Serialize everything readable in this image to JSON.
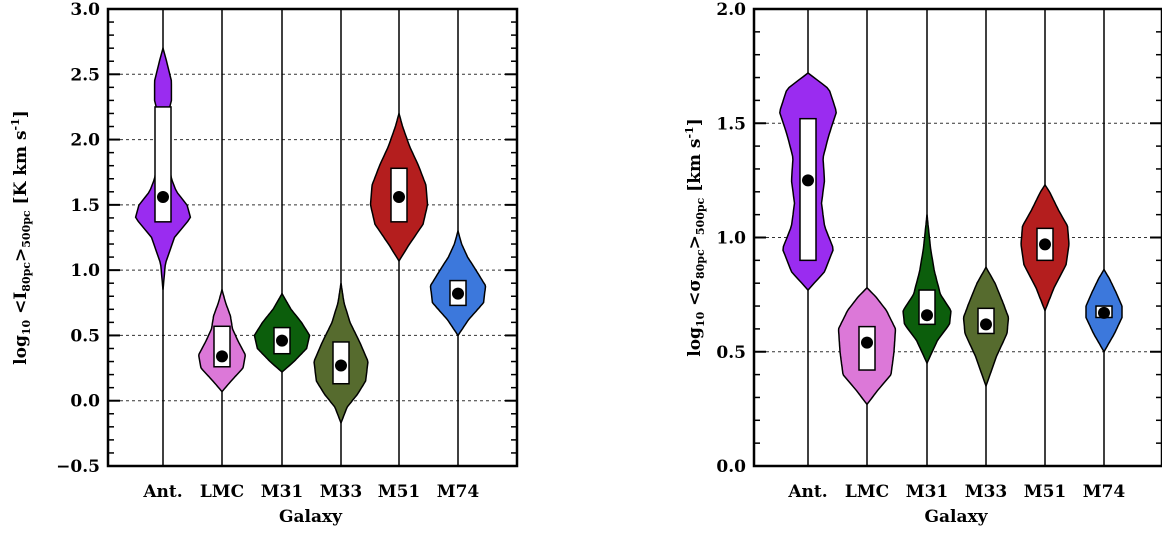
{
  "chart_data": [
    {
      "type": "violin",
      "xlabel": "Galaxy",
      "ylabel": {
        "prefix": "log",
        "prefix_sub": "10",
        "quantity": " <I",
        "quantity_sub": "80pc",
        "mid": ">",
        "mid_sub": "500pc",
        "unit": " [K km s",
        "unit_sup": "-1",
        "unit_end": "]"
      },
      "ylim": [
        -0.5,
        3.0
      ],
      "yticks": [
        -0.5,
        0.0,
        0.5,
        1.0,
        1.5,
        2.0,
        2.5,
        3.0
      ],
      "ytick_labels": [
        "−0.5",
        "0.0",
        "0.5",
        "1.0",
        "1.5",
        "2.0",
        "2.5",
        "3.0"
      ],
      "grid": "horizontal dashed",
      "categories": [
        "Ant.",
        "LMC",
        "M31",
        "M33",
        "M51",
        "M74"
      ],
      "colors": [
        "#9a2cf0",
        "#dc78d8",
        "#0c5e0c",
        "#566b2e",
        "#b41e1e",
        "#3c78dc"
      ],
      "series": [
        {
          "median": 1.56,
          "box": [
            1.37,
            2.25
          ],
          "range": [
            0.85,
            2.7
          ],
          "profile": [
            [
              0.85,
              0
            ],
            [
              1.05,
              0.08
            ],
            [
              1.25,
              0.38
            ],
            [
              1.4,
              0.92
            ],
            [
              1.5,
              0.8
            ],
            [
              1.6,
              0.45
            ],
            [
              1.7,
              0.28
            ],
            [
              1.9,
              0.15
            ],
            [
              2.15,
              0.12
            ],
            [
              2.3,
              0.28
            ],
            [
              2.45,
              0.28
            ],
            [
              2.6,
              0.12
            ],
            [
              2.7,
              0
            ]
          ]
        },
        {
          "median": 0.34,
          "box": [
            0.26,
            0.57
          ],
          "range": [
            0.07,
            0.85
          ],
          "profile": [
            [
              0.07,
              0
            ],
            [
              0.15,
              0.3
            ],
            [
              0.25,
              0.7
            ],
            [
              0.35,
              0.78
            ],
            [
              0.45,
              0.55
            ],
            [
              0.55,
              0.35
            ],
            [
              0.65,
              0.28
            ],
            [
              0.75,
              0.12
            ],
            [
              0.85,
              0
            ]
          ]
        },
        {
          "median": 0.46,
          "box": [
            0.36,
            0.56
          ],
          "range": [
            0.22,
            0.82
          ],
          "profile": [
            [
              0.22,
              0
            ],
            [
              0.3,
              0.4
            ],
            [
              0.4,
              0.82
            ],
            [
              0.5,
              0.92
            ],
            [
              0.6,
              0.65
            ],
            [
              0.7,
              0.3
            ],
            [
              0.82,
              0
            ]
          ]
        },
        {
          "median": 0.27,
          "box": [
            0.13,
            0.45
          ],
          "range": [
            -0.17,
            0.9
          ],
          "profile": [
            [
              -0.17,
              0
            ],
            [
              -0.05,
              0.2
            ],
            [
              0.05,
              0.55
            ],
            [
              0.15,
              0.82
            ],
            [
              0.3,
              0.9
            ],
            [
              0.45,
              0.62
            ],
            [
              0.6,
              0.3
            ],
            [
              0.75,
              0.1
            ],
            [
              0.9,
              0
            ]
          ]
        },
        {
          "median": 1.56,
          "box": [
            1.37,
            1.78
          ],
          "range": [
            1.07,
            2.2
          ],
          "profile": [
            [
              1.07,
              0
            ],
            [
              1.2,
              0.35
            ],
            [
              1.35,
              0.8
            ],
            [
              1.5,
              0.95
            ],
            [
              1.65,
              0.9
            ],
            [
              1.8,
              0.65
            ],
            [
              1.95,
              0.35
            ],
            [
              2.1,
              0.12
            ],
            [
              2.2,
              0
            ]
          ]
        },
        {
          "median": 0.82,
          "box": [
            0.73,
            0.92
          ],
          "range": [
            0.5,
            1.3
          ],
          "profile": [
            [
              0.5,
              0
            ],
            [
              0.62,
              0.35
            ],
            [
              0.75,
              0.85
            ],
            [
              0.88,
              0.92
            ],
            [
              1.0,
              0.6
            ],
            [
              1.1,
              0.32
            ],
            [
              1.2,
              0.12
            ],
            [
              1.3,
              0
            ]
          ]
        }
      ]
    },
    {
      "type": "violin",
      "xlabel": "Galaxy",
      "ylabel": {
        "prefix": "log",
        "prefix_sub": "10",
        "quantity": " <σ",
        "quantity_sub": "80pc",
        "mid": ">",
        "mid_sub": "500pc",
        "unit": " [km s",
        "unit_sup": "-1",
        "unit_end": "]"
      },
      "ylim": [
        0.0,
        2.0
      ],
      "yticks": [
        0.0,
        0.5,
        1.0,
        1.5,
        2.0
      ],
      "ytick_labels": [
        "0.0",
        "0.5",
        "1.0",
        "1.5",
        "2.0"
      ],
      "grid": "horizontal dashed",
      "categories": [
        "Ant.",
        "LMC",
        "M31",
        "M33",
        "M51",
        "M74"
      ],
      "colors": [
        "#9a2cf0",
        "#dc78d8",
        "#0c5e0c",
        "#566b2e",
        "#b41e1e",
        "#3c78dc"
      ],
      "series": [
        {
          "median": 1.25,
          "box": [
            0.9,
            1.52
          ],
          "range": [
            0.77,
            1.72
          ],
          "profile": [
            [
              0.77,
              0
            ],
            [
              0.85,
              0.55
            ],
            [
              0.95,
              0.85
            ],
            [
              1.05,
              0.55
            ],
            [
              1.15,
              0.45
            ],
            [
              1.25,
              0.55
            ],
            [
              1.35,
              0.5
            ],
            [
              1.45,
              0.7
            ],
            [
              1.55,
              0.95
            ],
            [
              1.65,
              0.7
            ],
            [
              1.72,
              0
            ]
          ]
        },
        {
          "median": 0.54,
          "box": [
            0.42,
            0.61
          ],
          "range": [
            0.27,
            0.78
          ],
          "profile": [
            [
              0.27,
              0
            ],
            [
              0.33,
              0.35
            ],
            [
              0.4,
              0.8
            ],
            [
              0.5,
              0.9
            ],
            [
              0.6,
              0.95
            ],
            [
              0.68,
              0.65
            ],
            [
              0.74,
              0.3
            ],
            [
              0.78,
              0
            ]
          ]
        },
        {
          "median": 0.66,
          "box": [
            0.62,
            0.77
          ],
          "range": [
            0.45,
            1.1
          ],
          "profile": [
            [
              0.45,
              0
            ],
            [
              0.55,
              0.35
            ],
            [
              0.62,
              0.75
            ],
            [
              0.68,
              0.8
            ],
            [
              0.75,
              0.45
            ],
            [
              0.85,
              0.25
            ],
            [
              0.95,
              0.12
            ],
            [
              1.1,
              0
            ]
          ]
        },
        {
          "median": 0.62,
          "box": [
            0.58,
            0.69
          ],
          "range": [
            0.35,
            0.87
          ],
          "profile": [
            [
              0.35,
              0
            ],
            [
              0.48,
              0.35
            ],
            [
              0.58,
              0.7
            ],
            [
              0.65,
              0.75
            ],
            [
              0.72,
              0.55
            ],
            [
              0.8,
              0.3
            ],
            [
              0.87,
              0
            ]
          ]
        },
        {
          "median": 0.97,
          "box": [
            0.9,
            1.04
          ],
          "range": [
            0.68,
            1.23
          ],
          "profile": [
            [
              0.68,
              0
            ],
            [
              0.78,
              0.3
            ],
            [
              0.88,
              0.7
            ],
            [
              0.97,
              0.8
            ],
            [
              1.05,
              0.75
            ],
            [
              1.12,
              0.45
            ],
            [
              1.2,
              0.15
            ],
            [
              1.23,
              0
            ]
          ]
        },
        {
          "median": 0.67,
          "box": [
            0.65,
            0.7
          ],
          "range": [
            0.5,
            0.86
          ],
          "profile": [
            [
              0.5,
              0
            ],
            [
              0.58,
              0.35
            ],
            [
              0.65,
              0.6
            ],
            [
              0.7,
              0.6
            ],
            [
              0.76,
              0.4
            ],
            [
              0.82,
              0.18
            ],
            [
              0.86,
              0
            ]
          ]
        }
      ]
    }
  ]
}
